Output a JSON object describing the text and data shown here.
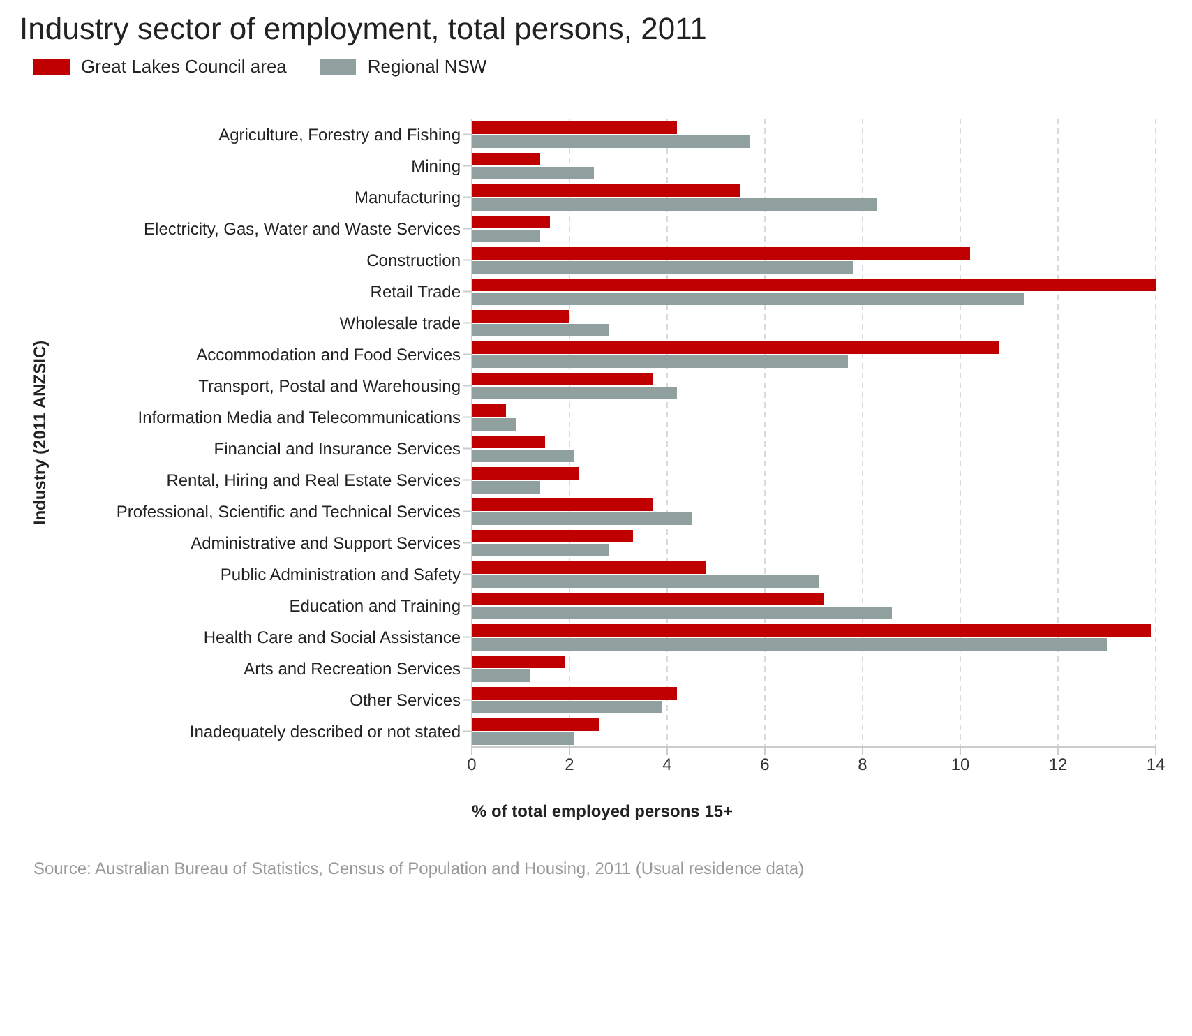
{
  "chart_data": {
    "type": "bar",
    "orientation": "horizontal",
    "title": "Industry sector of employment, total persons, 2011",
    "xlabel": "% of total employed persons 15+",
    "ylabel": "Industry (2011 ANZSIC)",
    "categories": [
      "Agriculture, Forestry and Fishing",
      "Mining",
      "Manufacturing",
      "Electricity, Gas, Water and Waste Services",
      "Construction",
      "Retail Trade",
      "Wholesale trade",
      "Accommodation and Food Services",
      "Transport, Postal and Warehousing",
      "Information Media and Telecommunications",
      "Financial and Insurance Services",
      "Rental, Hiring and Real Estate Services",
      "Professional, Scientific and Technical Services",
      "Administrative and Support Services",
      "Public Administration and Safety",
      "Education and Training",
      "Health Care and Social Assistance",
      "Arts and Recreation Services",
      "Other Services",
      "Inadequately described or not stated"
    ],
    "series": [
      {
        "name": "Great Lakes Council area",
        "color": "#c00000",
        "values": [
          4.2,
          1.4,
          5.5,
          1.6,
          10.2,
          14.0,
          2.0,
          10.8,
          3.7,
          0.7,
          1.5,
          2.2,
          3.7,
          3.3,
          4.8,
          7.2,
          13.9,
          1.9,
          4.2,
          2.6
        ]
      },
      {
        "name": "Regional NSW",
        "color": "#8fa09f",
        "values": [
          5.7,
          2.5,
          8.3,
          1.4,
          7.8,
          11.3,
          2.8,
          7.7,
          4.2,
          0.9,
          2.1,
          1.4,
          4.5,
          2.8,
          7.1,
          8.6,
          13.0,
          1.2,
          3.9,
          2.1
        ]
      }
    ],
    "xlim": [
      0,
      14
    ],
    "xticks": [
      0,
      2,
      4,
      6,
      8,
      10,
      12,
      14
    ],
    "grid": "x",
    "legend": "top left",
    "annotations": [
      "Source: Australian Bureau of Statistics, Census of Population and Housing, 2011 (Usual residence data)"
    ]
  }
}
